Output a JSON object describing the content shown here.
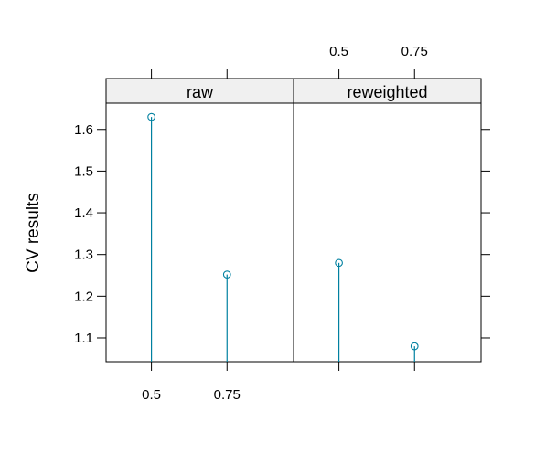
{
  "chart_data": {
    "type": "scatter",
    "style": "lollipop",
    "ylabel": "CV results",
    "panels": [
      {
        "name": "raw",
        "x": [
          0.5,
          0.75
        ],
        "y": [
          1.63,
          1.252
        ]
      },
      {
        "name": "reweighted",
        "x": [
          0.5,
          0.75
        ],
        "y": [
          1.28,
          1.08
        ]
      }
    ],
    "x_ticks": [
      0.5,
      0.75
    ],
    "x_tick_labels": [
      "0.5",
      "0.75"
    ],
    "xlim": [
      0.35,
      0.97
    ],
    "y_ticks": [
      1.1,
      1.2,
      1.3,
      1.4,
      1.5,
      1.6
    ],
    "y_tick_labels": [
      "1.1",
      "1.2",
      "1.3",
      "1.4",
      "1.5",
      "1.6"
    ],
    "ylim": [
      1.043,
      1.663
    ],
    "grid": false,
    "legend": "none",
    "colors": {
      "series": "#0080a0",
      "strip_fill": "#f0f0f0",
      "frame": "#000000"
    }
  }
}
